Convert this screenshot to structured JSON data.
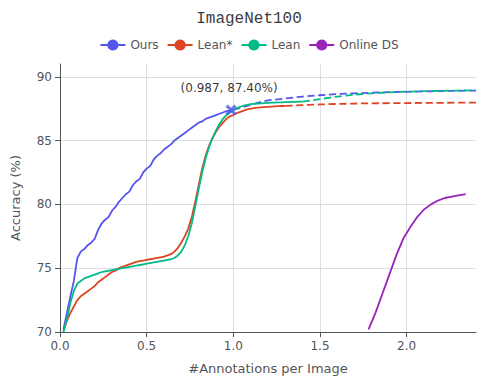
{
  "chart_data": {
    "type": "line",
    "title": "ImageNet100",
    "x_label": "#Annotations per Image",
    "y_label": "Accuracy (%)",
    "xlim": [
      0,
      2.4
    ],
    "ylim": [
      70,
      91
    ],
    "xticks": [
      {
        "value": 0,
        "label": "0.0"
      },
      {
        "value": 0.5,
        "label": "0.5"
      },
      {
        "value": 1.0,
        "label": "1.0"
      },
      {
        "value": 1.5,
        "label": "1.5"
      },
      {
        "value": 2.0,
        "label": "2.0"
      }
    ],
    "yticks": [
      70,
      75,
      80,
      85,
      90
    ],
    "grid": true,
    "legend": "top",
    "series": [
      {
        "name": "Ours",
        "color": "#5555ee",
        "line_style": "solid",
        "x": [
          0.02,
          0.04,
          0.06,
          0.08,
          0.1,
          0.12,
          0.14,
          0.16,
          0.18,
          0.2,
          0.22,
          0.24,
          0.26,
          0.28,
          0.3,
          0.32,
          0.34,
          0.36,
          0.38,
          0.4,
          0.42,
          0.44,
          0.46,
          0.48,
          0.5,
          0.52,
          0.54,
          0.56,
          0.58,
          0.6,
          0.62,
          0.64,
          0.66,
          0.68,
          0.7,
          0.72,
          0.74,
          0.76,
          0.78,
          0.8,
          0.82,
          0.84,
          0.86,
          0.88,
          0.9,
          0.92,
          0.94,
          0.96,
          0.98,
          1.0
        ],
        "values": [
          70.2,
          71.5,
          72.8,
          74.0,
          75.8,
          76.3,
          76.5,
          76.8,
          77.0,
          77.3,
          78.0,
          78.5,
          78.8,
          79.0,
          79.5,
          79.8,
          80.2,
          80.5,
          80.8,
          81.0,
          81.5,
          81.8,
          82.0,
          82.5,
          82.8,
          83.0,
          83.5,
          83.8,
          84.0,
          84.3,
          84.5,
          84.7,
          85.0,
          85.2,
          85.4,
          85.6,
          85.8,
          86.0,
          86.2,
          86.4,
          86.5,
          86.7,
          86.8,
          86.9,
          87.0,
          87.1,
          87.2,
          87.3,
          87.35,
          87.4
        ]
      },
      {
        "name": "Ours",
        "color": "#5555ee",
        "line_style": "dashed",
        "x": [
          1.0,
          1.05,
          1.1,
          1.15,
          1.2,
          1.3,
          1.4,
          1.5,
          1.6,
          1.7,
          1.8,
          1.9,
          2.0,
          2.1,
          2.2,
          2.3,
          2.4
        ],
        "values": [
          87.4,
          87.6,
          87.8,
          88.0,
          88.15,
          88.3,
          88.45,
          88.55,
          88.65,
          88.7,
          88.75,
          88.8,
          88.82,
          88.85,
          88.88,
          88.9,
          88.92
        ]
      },
      {
        "name": "Lean*",
        "color": "#dd4422",
        "line_style": "solid",
        "x": [
          0.02,
          0.04,
          0.06,
          0.08,
          0.1,
          0.12,
          0.14,
          0.16,
          0.18,
          0.2,
          0.22,
          0.24,
          0.26,
          0.28,
          0.3,
          0.32,
          0.34,
          0.36,
          0.38,
          0.4,
          0.42,
          0.44,
          0.46,
          0.48,
          0.5,
          0.52,
          0.54,
          0.56,
          0.58,
          0.6,
          0.62,
          0.64,
          0.66,
          0.68,
          0.7,
          0.72,
          0.74,
          0.76,
          0.78,
          0.8,
          0.82,
          0.84,
          0.86,
          0.88,
          0.9,
          0.92,
          0.94,
          0.96,
          0.98,
          1.0,
          1.02,
          1.04,
          1.06,
          1.08,
          1.1,
          1.12,
          1.14,
          1.16,
          1.18,
          1.2,
          1.22,
          1.24,
          1.26,
          1.28,
          1.3
        ],
        "values": [
          70.1,
          70.9,
          71.5,
          72.0,
          72.5,
          72.8,
          73.0,
          73.2,
          73.4,
          73.6,
          73.9,
          74.1,
          74.3,
          74.5,
          74.7,
          74.8,
          75.0,
          75.1,
          75.2,
          75.3,
          75.4,
          75.5,
          75.55,
          75.6,
          75.65,
          75.7,
          75.75,
          75.8,
          75.85,
          75.9,
          76.0,
          76.1,
          76.3,
          76.6,
          77.0,
          77.5,
          78.1,
          79.0,
          80.2,
          81.5,
          82.8,
          83.8,
          84.6,
          85.2,
          85.7,
          86.1,
          86.4,
          86.7,
          86.9,
          87.0,
          87.15,
          87.25,
          87.35,
          87.45,
          87.5,
          87.55,
          87.58,
          87.6,
          87.62,
          87.64,
          87.66,
          87.68,
          87.7,
          87.71,
          87.72
        ]
      },
      {
        "name": "Lean*",
        "color": "#dd4422",
        "line_style": "dashed",
        "x": [
          1.3,
          1.35,
          1.4,
          1.5,
          1.6,
          1.7,
          1.8,
          1.9,
          2.0,
          2.1,
          2.2,
          2.3,
          2.4
        ],
        "values": [
          87.72,
          87.75,
          87.78,
          87.83,
          87.87,
          87.9,
          87.92,
          87.93,
          87.94,
          87.95,
          87.96,
          87.97,
          87.98
        ]
      },
      {
        "name": "Lean",
        "color": "#00bb88",
        "line_style": "solid",
        "x": [
          0.02,
          0.04,
          0.06,
          0.08,
          0.1,
          0.12,
          0.14,
          0.16,
          0.18,
          0.2,
          0.22,
          0.24,
          0.26,
          0.28,
          0.3,
          0.32,
          0.34,
          0.36,
          0.38,
          0.4,
          0.42,
          0.44,
          0.46,
          0.48,
          0.5,
          0.52,
          0.54,
          0.56,
          0.58,
          0.6,
          0.62,
          0.64,
          0.66,
          0.68,
          0.7,
          0.72,
          0.74,
          0.76,
          0.78,
          0.8,
          0.82,
          0.84,
          0.86,
          0.88,
          0.9,
          0.92,
          0.94,
          0.96,
          0.98,
          1.0,
          1.02,
          1.04,
          1.06,
          1.08,
          1.1,
          1.12,
          1.14,
          1.16,
          1.18,
          1.2,
          1.22,
          1.24,
          1.26,
          1.28,
          1.3,
          1.32,
          1.34,
          1.36,
          1.38,
          1.4
        ],
        "values": [
          70.0,
          71.0,
          72.3,
          73.2,
          73.8,
          74.0,
          74.2,
          74.3,
          74.4,
          74.5,
          74.6,
          74.7,
          74.75,
          74.8,
          74.85,
          74.9,
          74.95,
          75.0,
          75.05,
          75.1,
          75.15,
          75.2,
          75.25,
          75.3,
          75.35,
          75.4,
          75.45,
          75.5,
          75.55,
          75.6,
          75.65,
          75.7,
          75.8,
          76.0,
          76.3,
          76.8,
          77.5,
          78.5,
          79.8,
          81.2,
          82.5,
          83.6,
          84.5,
          85.2,
          85.8,
          86.3,
          86.7,
          87.0,
          87.2,
          87.4,
          87.55,
          87.65,
          87.73,
          87.8,
          87.85,
          87.88,
          87.9,
          87.92,
          87.94,
          87.96,
          87.97,
          87.98,
          87.99,
          88.0,
          88.01,
          88.02,
          88.03,
          88.04,
          88.05,
          88.05
        ]
      },
      {
        "name": "Lean",
        "color": "#00bb88",
        "line_style": "dashed",
        "x": [
          1.4,
          1.45,
          1.5,
          1.55,
          1.6,
          1.7,
          1.8,
          1.9,
          2.0,
          2.1,
          2.2,
          2.3,
          2.4
        ],
        "values": [
          88.05,
          88.15,
          88.25,
          88.35,
          88.45,
          88.6,
          88.7,
          88.78,
          88.83,
          88.87,
          88.9,
          88.92,
          88.94
        ]
      },
      {
        "name": "Online DS",
        "color": "#9922bb",
        "line_style": "solid",
        "x": [
          1.78,
          1.82,
          1.86,
          1.9,
          1.94,
          1.98,
          2.02,
          2.06,
          2.1,
          2.14,
          2.18,
          2.22,
          2.26,
          2.3,
          2.34
        ],
        "values": [
          70.2,
          71.5,
          73.0,
          74.5,
          76.0,
          77.3,
          78.2,
          79.0,
          79.6,
          80.0,
          80.3,
          80.5,
          80.6,
          80.7,
          80.8
        ]
      }
    ],
    "annotations": [
      {
        "text": "(0.987, 87.40%)",
        "x": 0.987,
        "y": 87.4,
        "marker": "x",
        "color": "#5555ee"
      }
    ]
  }
}
